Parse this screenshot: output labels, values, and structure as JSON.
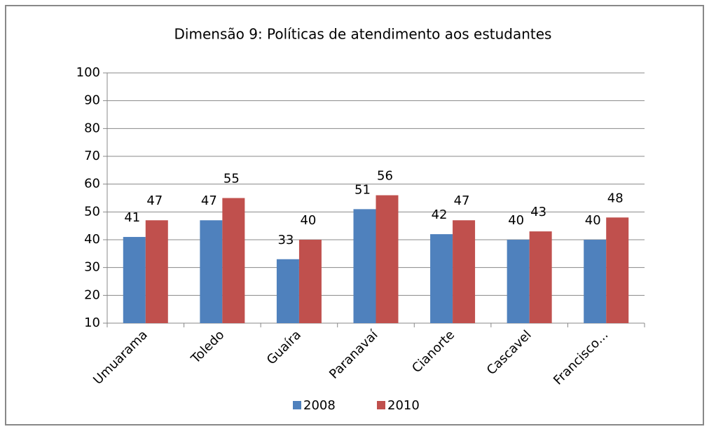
{
  "chart_data": {
    "type": "bar",
    "title": "Dimensão 9: Políticas de atendimento aos estudantes",
    "categories": [
      "Umuarama",
      "Toledo",
      "Guaíra",
      "Paranavaí",
      "Cianorte",
      "Cascavel",
      "Francisco..."
    ],
    "series": [
      {
        "name": "2008",
        "color": "#4f81bd",
        "values": [
          41,
          47,
          33,
          51,
          42,
          40,
          40
        ]
      },
      {
        "name": "2010",
        "color": "#c0504d",
        "values": [
          47,
          55,
          40,
          56,
          47,
          43,
          48
        ]
      }
    ],
    "ylim": [
      10,
      100
    ],
    "yticks": [
      10,
      20,
      30,
      40,
      50,
      60,
      70,
      80,
      90,
      100
    ],
    "grid": true,
    "legend": "bottom"
  }
}
